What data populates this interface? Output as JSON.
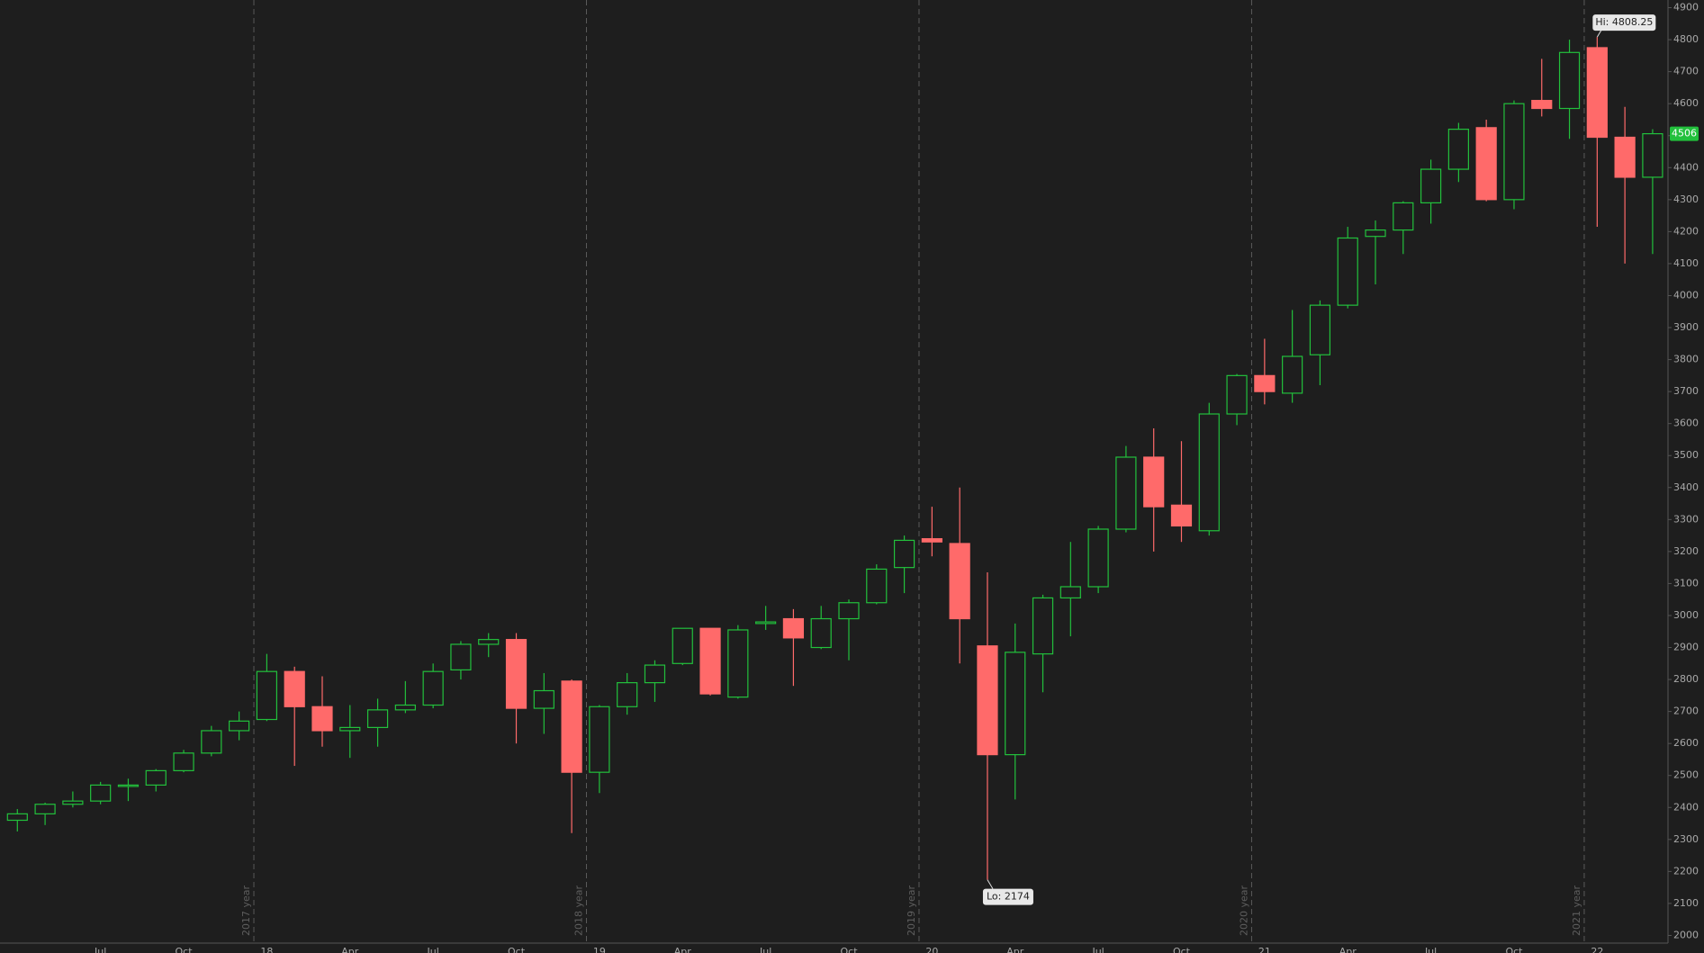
{
  "chart_data": {
    "type": "candlestick",
    "categories": [
      null,
      null,
      null,
      "Jul",
      null,
      null,
      "Oct",
      null,
      null,
      "18",
      null,
      null,
      "Apr",
      null,
      null,
      "Jul",
      null,
      null,
      "Oct",
      null,
      null,
      "19",
      null,
      null,
      "Apr",
      null,
      null,
      "Jul",
      null,
      null,
      "Oct",
      null,
      null,
      "20",
      null,
      null,
      "Apr",
      null,
      null,
      "Jul",
      null,
      null,
      "Oct",
      null,
      null,
      "21",
      null,
      null,
      "Apr",
      null,
      null,
      "Jul",
      null,
      null,
      "Oct",
      null,
      null,
      "22",
      null,
      null
    ],
    "open": [
      2360,
      2380,
      2410,
      2420,
      2470,
      2470,
      2515,
      2570,
      2640,
      2675,
      2825,
      2715,
      2640,
      2650,
      2705,
      2720,
      2830,
      2910,
      2925,
      2710,
      2795,
      2510,
      2715,
      2790,
      2850,
      2960,
      2745,
      2975,
      2990,
      2900,
      2990,
      3040,
      3150,
      3240,
      3225,
      2905,
      2565,
      2880,
      3055,
      3090,
      3270,
      3495,
      3345,
      3265,
      3630,
      3750,
      3695,
      3815,
      3970,
      4185,
      4205,
      4290,
      4395,
      4525,
      4300,
      4610,
      4585,
      4775,
      4495,
      4370
    ],
    "high": [
      2395,
      2415,
      2450,
      2480,
      2490,
      2520,
      2580,
      2655,
      2700,
      2880,
      2840,
      2810,
      2720,
      2740,
      2795,
      2850,
      2920,
      2945,
      2945,
      2820,
      2800,
      2720,
      2820,
      2860,
      2960,
      2960,
      2970,
      3030,
      3020,
      3030,
      3050,
      3160,
      3250,
      3340,
      3400,
      3135,
      2975,
      3065,
      3230,
      3280,
      3530,
      3585,
      3545,
      3665,
      3755,
      3865,
      3955,
      3985,
      4215,
      4235,
      4295,
      4425,
      4540,
      4550,
      4610,
      4740,
      4800,
      4808.25,
      4590,
      4520
    ],
    "low": [
      2325,
      2345,
      2400,
      2410,
      2420,
      2450,
      2510,
      2560,
      2610,
      2670,
      2530,
      2590,
      2555,
      2590,
      2695,
      2710,
      2800,
      2870,
      2600,
      2630,
      2320,
      2445,
      2690,
      2730,
      2845,
      2750,
      2740,
      2955,
      2780,
      2895,
      2860,
      3035,
      3070,
      3185,
      2850,
      2174,
      2425,
      2760,
      2935,
      3070,
      3260,
      3200,
      3230,
      3250,
      3595,
      3660,
      3665,
      3720,
      3960,
      4035,
      4130,
      4225,
      4355,
      4295,
      4270,
      4560,
      4490,
      4215,
      4100,
      4130
    ],
    "close": [
      2380,
      2410,
      2420,
      2470,
      2470,
      2515,
      2570,
      2640,
      2670,
      2825,
      2715,
      2640,
      2650,
      2705,
      2720,
      2825,
      2910,
      2925,
      2710,
      2765,
      2510,
      2715,
      2790,
      2845,
      2960,
      2755,
      2955,
      2980,
      2930,
      2990,
      3040,
      3145,
      3235,
      3230,
      2990,
      2565,
      2885,
      3055,
      3090,
      3270,
      3495,
      3340,
      3280,
      3630,
      3750,
      3700,
      3810,
      3970,
      4180,
      4205,
      4290,
      4395,
      4520,
      4300,
      4600,
      4585,
      4760,
      4495,
      4370,
      4506
    ],
    "up_color": "#22c03c",
    "down_color": "#ff6a6a",
    "ylim": [
      1976,
      4924
    ],
    "yticks": [
      2000,
      2100,
      2200,
      2300,
      2400,
      2500,
      2600,
      2700,
      2800,
      2900,
      3000,
      3100,
      3200,
      3300,
      3400,
      3500,
      3600,
      3700,
      3800,
      3900,
      4000,
      4100,
      4200,
      4300,
      4400,
      4500,
      4600,
      4700,
      4800,
      4900
    ],
    "year_labels": [
      "2017 year",
      "2018 year",
      "2019 year",
      "2020 year",
      "2021 year"
    ],
    "high_annotation": "Hi: 4808.25",
    "low_annotation": "Lo: 2174",
    "last_price_label": "4506"
  }
}
